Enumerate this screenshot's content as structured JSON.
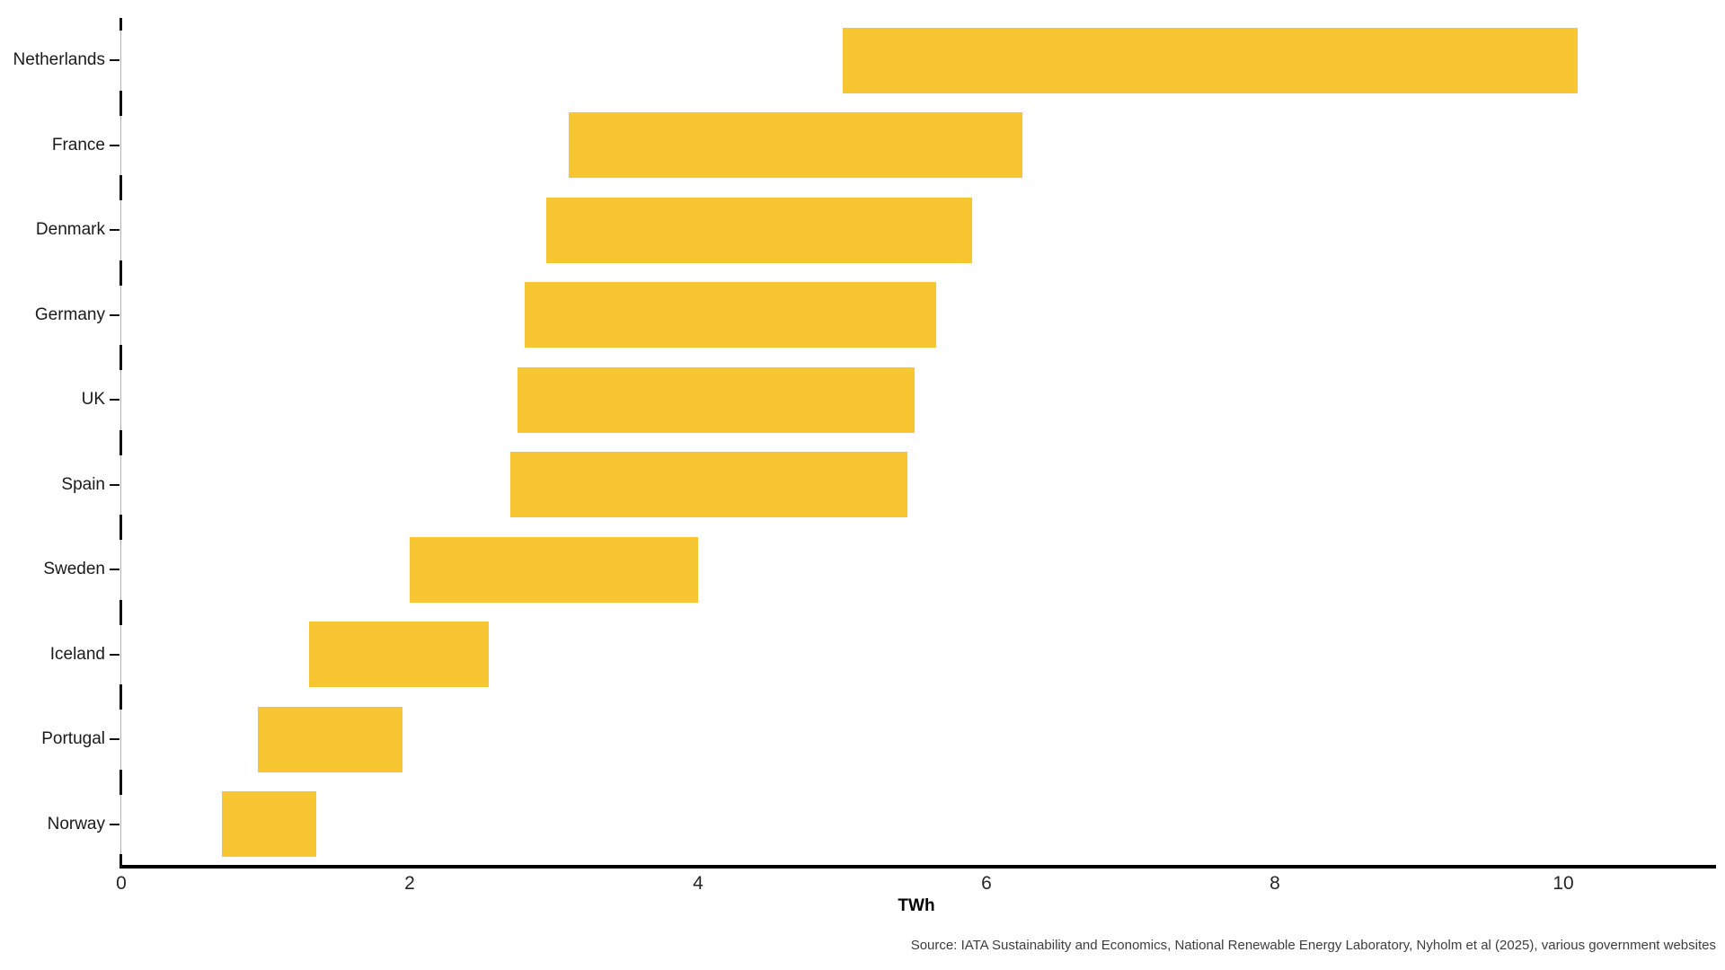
{
  "page": {
    "background": "#ffffff"
  },
  "chart_data": {
    "type": "bar",
    "subtype": "horizontal-range-bars",
    "title": "",
    "xlabel": "TWh",
    "categories": [
      "Netherlands",
      "France",
      "Denmark",
      "Germany",
      "UK",
      "Spain",
      "Sweden",
      "Iceland",
      "Portugal",
      "Norway"
    ],
    "series": [
      {
        "name": "TWh range",
        "low": [
          5.0,
          3.1,
          2.95,
          2.8,
          2.75,
          2.7,
          2.0,
          1.3,
          0.95,
          0.7
        ],
        "high": [
          10.1,
          6.25,
          5.9,
          5.65,
          5.5,
          5.45,
          4.0,
          2.55,
          1.95,
          1.35
        ]
      }
    ],
    "x_ticks": [
      "0",
      "2",
      "4",
      "6",
      "8",
      "10"
    ],
    "x_tick_values": [
      0,
      2,
      4,
      6,
      8,
      10
    ],
    "xlim": [
      0,
      11.06
    ],
    "grid": false,
    "legend": false,
    "bar_color": "#F8C632",
    "axis_line_color": "#000000",
    "spine_color": "#b3b3b3",
    "tick_mark_color": "#111111",
    "source": "Source: IATA Sustainability and Economics, National Renewable Energy Laboratory, Nyholm et al (2025), various government websites"
  }
}
